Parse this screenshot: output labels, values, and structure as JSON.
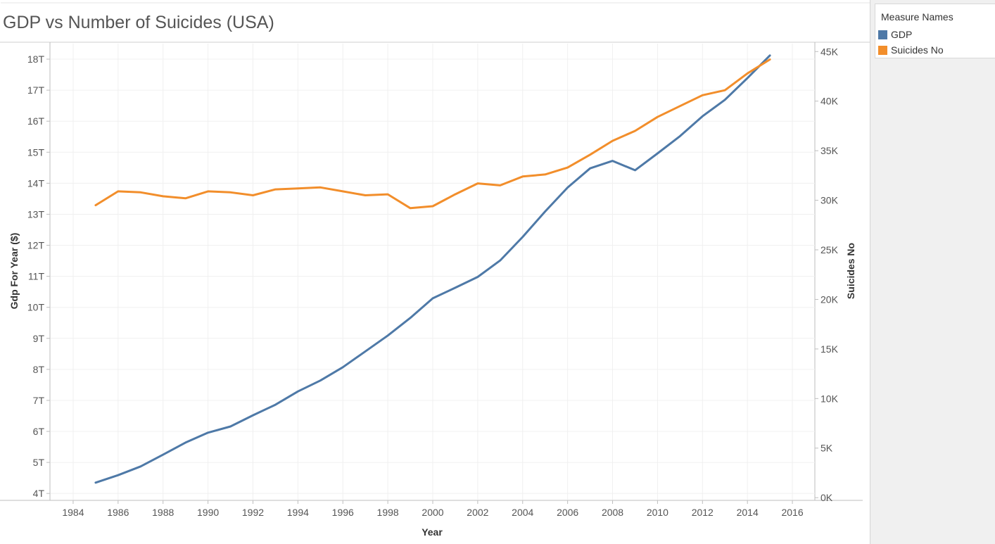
{
  "title": "GDP vs Number of Suicides (USA)",
  "legend": {
    "title": "Measure Names",
    "items": [
      {
        "label": "GDP",
        "color": "#4e79a7"
      },
      {
        "label": "Suicides No",
        "color": "#f28e2b"
      }
    ]
  },
  "chart_data": {
    "type": "line",
    "xlabel": "Year",
    "ylabel": "Gdp For Year ($)",
    "y2label": "Suicides No",
    "xlim": [
      1983,
      2017
    ],
    "ylim": [
      3.8,
      18.5
    ],
    "y2lim": [
      -200,
      45800
    ],
    "grid": true,
    "legend_position": "top-right",
    "x_ticks": [
      1984,
      1986,
      1988,
      1990,
      1992,
      1994,
      1996,
      1998,
      2000,
      2002,
      2004,
      2006,
      2008,
      2010,
      2012,
      2014,
      2016
    ],
    "y_ticks": [
      4,
      5,
      6,
      7,
      8,
      9,
      10,
      11,
      12,
      13,
      14,
      15,
      16,
      17,
      18
    ],
    "y_tick_labels": [
      "4T",
      "5T",
      "6T",
      "7T",
      "8T",
      "9T",
      "10T",
      "11T",
      "12T",
      "13T",
      "14T",
      "15T",
      "16T",
      "17T",
      "18T"
    ],
    "y2_ticks": [
      0,
      5000,
      10000,
      15000,
      20000,
      25000,
      30000,
      35000,
      40000,
      45000
    ],
    "y2_tick_labels": [
      "0K",
      "5K",
      "10K",
      "15K",
      "20K",
      "25K",
      "30K",
      "35K",
      "40K",
      "45K"
    ],
    "x": [
      1985,
      1986,
      1987,
      1988,
      1989,
      1990,
      1991,
      1992,
      1993,
      1994,
      1995,
      1996,
      1997,
      1998,
      1999,
      2000,
      2001,
      2002,
      2003,
      2004,
      2005,
      2006,
      2007,
      2008,
      2009,
      2010,
      2011,
      2012,
      2013,
      2014,
      2015
    ],
    "series": [
      {
        "name": "GDP",
        "axis": "left",
        "color": "#4e79a7",
        "values": [
          4.35,
          4.59,
          4.87,
          5.25,
          5.64,
          5.96,
          6.16,
          6.52,
          6.86,
          7.29,
          7.64,
          8.07,
          8.58,
          9.09,
          9.66,
          10.29,
          10.63,
          10.98,
          11.51,
          12.27,
          13.09,
          13.86,
          14.48,
          14.72,
          14.42,
          14.96,
          15.52,
          16.16,
          16.69,
          17.39,
          18.12
        ]
      },
      {
        "name": "Suicides No",
        "axis": "right",
        "color": "#f28e2b",
        "values": [
          29500,
          30900,
          30800,
          30400,
          30200,
          30900,
          30800,
          30500,
          31100,
          31200,
          31300,
          30900,
          30500,
          30600,
          29200,
          29400,
          30600,
          31700,
          31500,
          32400,
          32600,
          33300,
          34600,
          36000,
          37000,
          38400,
          39500,
          40600,
          41100,
          42800,
          44200
        ]
      }
    ]
  }
}
